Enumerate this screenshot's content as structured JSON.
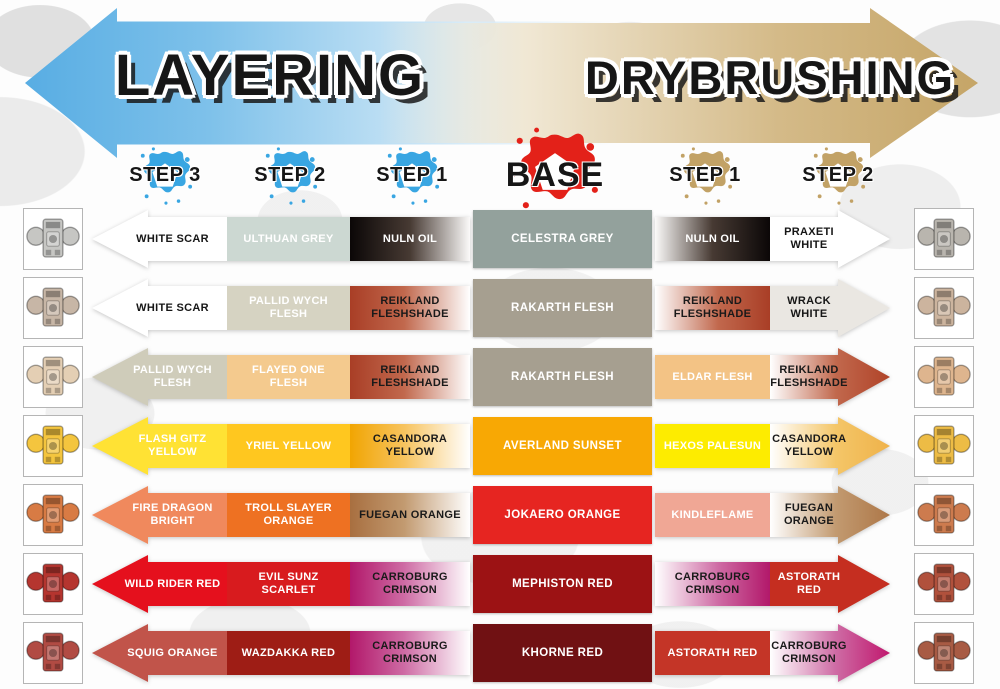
{
  "banner": {
    "layering_label": "LAYERING",
    "drybrushing_label": "DRYBRUSHING",
    "layering_arrow_bg": "linear-gradient(to right,#58ade3 0%,#7ec1ea 30%,#d9ecf8 72%,rgba(255,255,255,0) 96%)",
    "drybrushing_arrow_bg": "linear-gradient(to left,#c5a567 0%,#d4ba88 32%,#f0e7d3 72%,rgba(255,255,255,0) 96%)"
  },
  "columns": {
    "layering_steps": [
      "STEP 3",
      "STEP 2",
      "STEP 1"
    ],
    "base_label": "BASE",
    "drybrushing_steps": [
      "STEP 1",
      "STEP 2"
    ],
    "layering_accent": "#39a6e2",
    "base_accent": "#e32119",
    "drybrushing_accent": "#c2a266"
  },
  "rows": [
    {
      "thumb_left": "#c6c6c3",
      "thumb_right": "#b9b5ae",
      "layering": [
        {
          "name": "WHITE SCAR",
          "bg": "#ffffff",
          "text": "#161616"
        },
        {
          "name": "ULTHUAN GREY",
          "bg": "#ccd8d2",
          "text": "#ffffff"
        },
        {
          "name": "NULN OIL",
          "bg": "linear-gradient(to right,#0b0707 0%,#473a33 50%,#fbfaf9 100%)",
          "text": "#ffffff"
        }
      ],
      "base": {
        "name": "CELESTRA GREY",
        "bg": "#93a19c",
        "text": "#ffffff"
      },
      "drybrushing": [
        {
          "name": "NULN OIL",
          "bg": "linear-gradient(to right,#fbfaf9 0%,#473a33 50%,#0b0707 100%)",
          "text": "#ffffff"
        },
        {
          "name": "PRAXETI WHITE",
          "bg": "#ffffff",
          "text": "#161616"
        }
      ]
    },
    {
      "thumb_left": "#c7b6a6",
      "thumb_right": "#ccb49e",
      "layering": [
        {
          "name": "WHITE SCAR",
          "bg": "#ffffff",
          "text": "#161616"
        },
        {
          "name": "PALLID WYCH FLESH",
          "bg": "#d6d3c2",
          "text": "#ffffff"
        },
        {
          "name": "REIKLAND FLESHSHADE",
          "bg": "linear-gradient(to right,#a93e26 0%,#c1684d 45%,#ffffff 100%)",
          "text": "#1a1a1a"
        }
      ],
      "base": {
        "name": "RAKARTH FLESH",
        "bg": "#a69f90",
        "text": "#ffffff"
      },
      "drybrushing": [
        {
          "name": "REIKLAND FLESHSHADE",
          "bg": "linear-gradient(to right,#ffffff 0%,#c1684d 55%,#a93e26 100%)",
          "text": "#1a1a1a"
        },
        {
          "name": "WRACK WHITE",
          "bg": "#eae7e2",
          "text": "#161616"
        }
      ]
    },
    {
      "thumb_left": "#e4cfb4",
      "thumb_right": "#deb58e",
      "layering": [
        {
          "name": "PALLID WYCH FLESH",
          "bg": "#cfccba",
          "text": "#ffffff"
        },
        {
          "name": "FLAYED ONE FLESH",
          "bg": "#f4ca8e",
          "text": "#ffffff"
        },
        {
          "name": "REIKLAND FLESHSHADE",
          "bg": "linear-gradient(to right,#a93e26 0%,#c1684d 45%,#ffffff 100%)",
          "text": "#1a1a1a"
        }
      ],
      "base": {
        "name": "RAKARTH FLESH",
        "bg": "#a69f90",
        "text": "#ffffff"
      },
      "drybrushing": [
        {
          "name": "ELDAR FLESH",
          "bg": "#f3c385",
          "text": "#ffffff"
        },
        {
          "name": "REIKLAND FLESHSHADE",
          "bg": "linear-gradient(to right,#ffffff 0%,#c1684d 55%,#b04328 100%)",
          "text": "#1a1a1a"
        }
      ]
    },
    {
      "thumb_left": "#f4c53e",
      "thumb_right": "#edbc45",
      "layering": [
        {
          "name": "FLASH GITZ YELLOW",
          "bg": "#ffe234",
          "text": "#ffffff"
        },
        {
          "name": "YRIEL YELLOW",
          "bg": "#ffc71f",
          "text": "#ffffff"
        },
        {
          "name": "CASANDORA YELLOW",
          "bg": "linear-gradient(to right,#f1a502 0%,#f7c35e 45%,#ffffff 100%)",
          "text": "#1a1a1a"
        }
      ],
      "base": {
        "name": "AVERLAND SUNSET",
        "bg": "#f8a804",
        "text": "#ffffff"
      },
      "drybrushing": [
        {
          "name": "HEXOS PALESUN",
          "bg": "#fdec00",
          "text": "#ffffff"
        },
        {
          "name": "CASANDORA YELLOW",
          "bg": "linear-gradient(to right,#ffffff 0%,#f4c668 55%,#efb24a 100%)",
          "text": "#1a1a1a"
        }
      ]
    },
    {
      "thumb_left": "#d87b44",
      "thumb_right": "#cd7b4e",
      "layering": [
        {
          "name": "FIRE DRAGON BRIGHT",
          "bg": "#f0895d",
          "text": "#ffffff"
        },
        {
          "name": "TROLL SLAYER ORANGE",
          "bg": "#ee7122",
          "text": "#ffffff"
        },
        {
          "name": "FUEGAN ORANGE",
          "bg": "linear-gradient(to right,#a86f40 0%,#c29a70 45%,#ffffff 100%)",
          "text": "#1a1a1a"
        }
      ],
      "base": {
        "name": "JOKAERO ORANGE",
        "bg": "#e62521",
        "text": "#ffffff"
      },
      "drybrushing": [
        {
          "name": "KINDLEFLAME",
          "bg": "#f0a795",
          "text": "#ffffff"
        },
        {
          "name": "FUEGAN ORANGE",
          "bg": "linear-gradient(to right,#ffffff 0%,#c29a70 55%,#ad7748 100%)",
          "text": "#1a1a1a"
        }
      ]
    },
    {
      "thumb_left": "#b5352f",
      "thumb_right": "#b1513c",
      "layering": [
        {
          "name": "WILD RIDER RED",
          "bg": "#e5101d",
          "text": "#ffffff"
        },
        {
          "name": "EVIL SUNZ SCARLET",
          "bg": "#d81b1e",
          "text": "#ffffff"
        },
        {
          "name": "CARROBURG CRIMSON",
          "bg": "linear-gradient(to right,#b2186a 0%,#ce6ba4 45%,#ffffff 100%)",
          "text": "#1a1a1a"
        }
      ],
      "base": {
        "name": "MEPHISTON RED",
        "bg": "#9c1214",
        "text": "#ffffff"
      },
      "drybrushing": [
        {
          "name": "CARROBURG CRIMSON",
          "bg": "linear-gradient(to right,#ffffff 0%,#ce6ba4 55%,#b2186a 100%)",
          "text": "#1a1a1a"
        },
        {
          "name": "ASTORATH RED",
          "bg": "#c52e20",
          "text": "#ffffff"
        }
      ]
    },
    {
      "thumb_left": "#b14b43",
      "thumb_right": "#a85b44",
      "layering": [
        {
          "name": "SQUIG ORANGE",
          "bg": "#c1544a",
          "text": "#ffffff"
        },
        {
          "name": "WAZDAKKA RED",
          "bg": "#9e1d15",
          "text": "#ffffff"
        },
        {
          "name": "CARROBURG CRIMSON",
          "bg": "linear-gradient(to right,#b2186a 0%,#ce6ba4 45%,#ffffff 100%)",
          "text": "#1a1a1a"
        }
      ],
      "base": {
        "name": "KHORNE RED",
        "bg": "#701113",
        "text": "#ffffff"
      },
      "drybrushing": [
        {
          "name": "ASTORATH RED",
          "bg": "#c43527",
          "text": "#ffffff"
        },
        {
          "name": "CARROBURG CRIMSON",
          "bg": "linear-gradient(to right,#ffffff 0%,#ce6ba4 55%,#c0186e 100%)",
          "text": "#1a1a1a"
        }
      ]
    }
  ]
}
